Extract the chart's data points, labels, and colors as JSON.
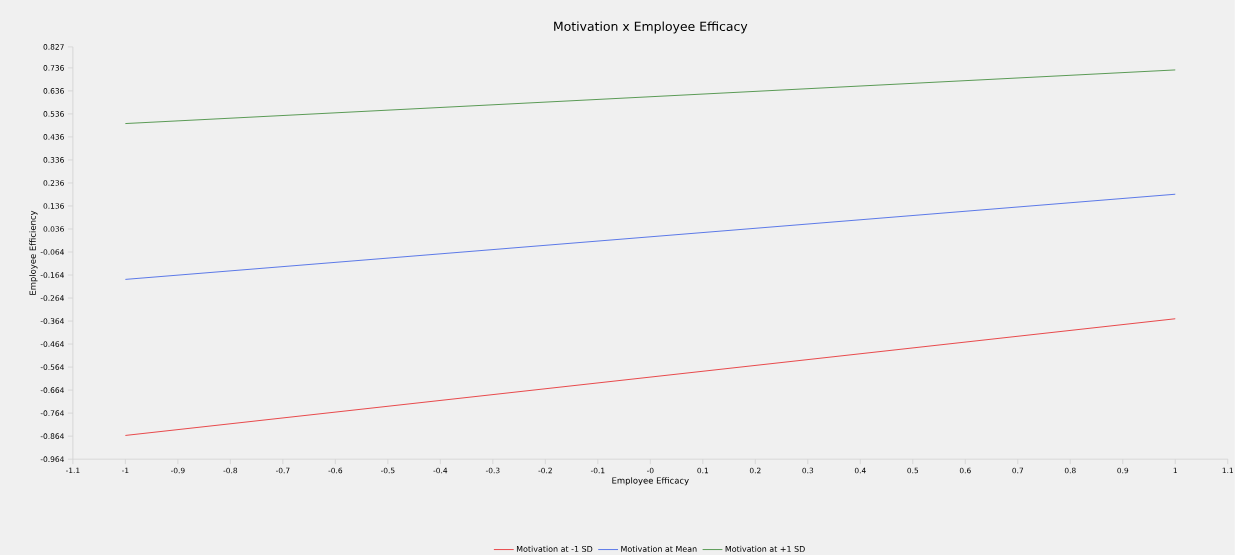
{
  "chart_data": {
    "type": "line",
    "title": "Motivation x Employee Efficacy",
    "xlabel": "Employee Efficacy",
    "ylabel": "Employee Efficiency",
    "x": [
      -1,
      1
    ],
    "series": [
      {
        "name": "Motivation at -1 SD",
        "color": "#e8494b",
        "values": [
          -0.861,
          -0.354
        ]
      },
      {
        "name": "Motivation at Mean",
        "color": "#5b78e8",
        "values": [
          -0.183,
          0.187
        ]
      },
      {
        "name": "Motivation at +1 SD",
        "color": "#5a9a55",
        "values": [
          0.494,
          0.727
        ]
      }
    ],
    "xlim": [
      -1.1,
      1.1
    ],
    "xticks": [
      -1.1,
      -1,
      -0.9,
      -0.8,
      -0.7,
      -0.6,
      -0.5,
      -0.4,
      -0.3,
      -0.2,
      -0.1,
      {
        "value": 0,
        "label": "-0"
      },
      0.1,
      0.2,
      0.3,
      0.4,
      0.5,
      0.6,
      0.7,
      0.8,
      0.9,
      1,
      1.1
    ],
    "ylim": [
      -0.964,
      0.827
    ],
    "yticks": [
      -0.964,
      -0.864,
      -0.764,
      -0.664,
      -0.564,
      -0.464,
      -0.364,
      -0.264,
      -0.164,
      -0.064,
      0.036,
      0.136,
      0.236,
      0.336,
      0.436,
      0.536,
      0.636,
      0.736,
      0.827
    ],
    "grid": false,
    "legend": "bottom",
    "marker": "none",
    "line_style": "solid"
  }
}
